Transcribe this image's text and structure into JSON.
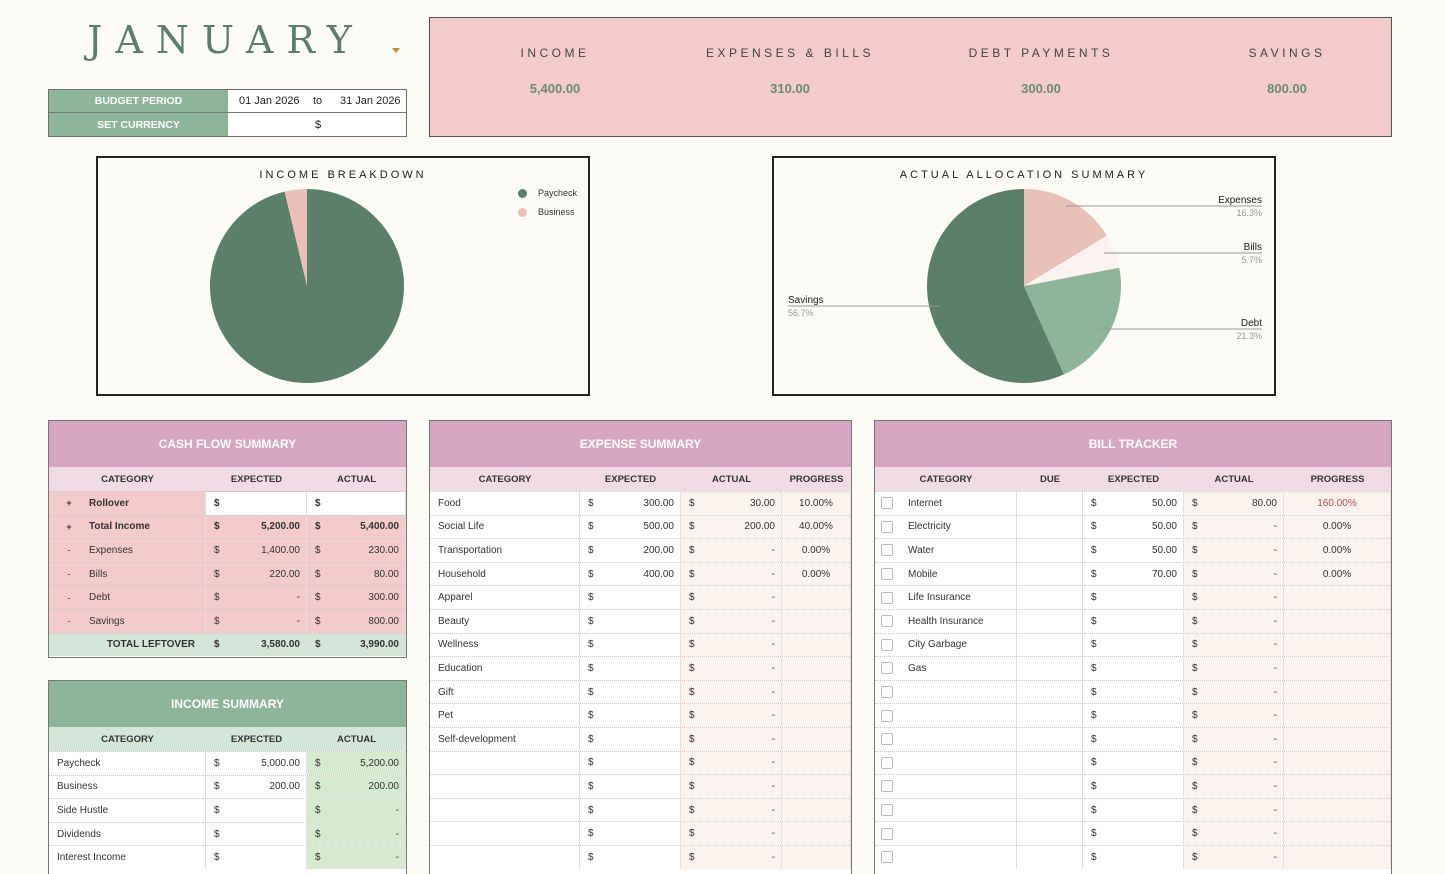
{
  "header": {
    "month": "JANUARY",
    "budget_period_label": "BUDGET PERIOD",
    "period_start": "01 Jan 2026",
    "period_to": "to",
    "period_end": "31 Jan 2026",
    "currency_label": "SET CURRENCY",
    "currency_symbol": "$"
  },
  "kpis": [
    {
      "label": "INCOME",
      "value": "5,400.00"
    },
    {
      "label": "EXPENSES & BILLS",
      "value": "310.00"
    },
    {
      "label": "DEBT PAYMENTS",
      "value": "300.00"
    },
    {
      "label": "SAVINGS",
      "value": "800.00"
    }
  ],
  "chart_data": [
    {
      "type": "pie",
      "title": "INCOME BREAKDOWN",
      "categories": [
        "Paycheck",
        "Business"
      ],
      "values": [
        5200,
        200
      ],
      "colors": [
        "#5b7f68",
        "#ebc0b8"
      ],
      "legend": "top-right"
    },
    {
      "type": "pie",
      "title": "ACTUAL ALLOCATION SUMMARY",
      "categories": [
        "Expenses",
        "Bills",
        "Debt",
        "Savings"
      ],
      "values": [
        230,
        80,
        300,
        800
      ],
      "percent_labels": [
        "16.3%",
        "5.7%",
        "21.3%",
        "56.7%"
      ],
      "colors": [
        "#e8c1b8",
        "#fcf2ef",
        "#8db59a",
        "#5b7f68"
      ]
    }
  ],
  "cashflow": {
    "title": "CASH FLOW SUMMARY",
    "headers": [
      "CATEGORY",
      "EXPECTED",
      "ACTUAL"
    ],
    "rows": [
      {
        "sign": "+",
        "category": "Rollover",
        "expected": "",
        "actual": "",
        "bold": true
      },
      {
        "sign": "+",
        "category": "Total Income",
        "expected": "5,200.00",
        "actual": "5,400.00",
        "bold": true
      },
      {
        "sign": "-",
        "category": "Expenses",
        "expected": "1,400.00",
        "actual": "230.00",
        "bold": false
      },
      {
        "sign": "-",
        "category": "Bills",
        "expected": "220.00",
        "actual": "80.00",
        "bold": false
      },
      {
        "sign": "-",
        "category": "Debt",
        "expected": "-",
        "actual": "300.00",
        "bold": false
      },
      {
        "sign": "-",
        "category": "Savings",
        "expected": "-",
        "actual": "800.00",
        "bold": false
      }
    ],
    "total": {
      "label": "TOTAL LEFTOVER",
      "expected": "3,580.00",
      "actual": "3,990.00"
    }
  },
  "income": {
    "title": "INCOME SUMMARY",
    "headers": [
      "CATEGORY",
      "EXPECTED",
      "ACTUAL"
    ],
    "rows": [
      {
        "category": "Paycheck",
        "expected": "5,000.00",
        "actual": "5,200.00"
      },
      {
        "category": "Business",
        "expected": "200.00",
        "actual": "200.00"
      },
      {
        "category": "Side Hustle",
        "expected": "",
        "actual": "-"
      },
      {
        "category": "Dividends",
        "expected": "",
        "actual": "-"
      },
      {
        "category": "Interest Income",
        "expected": "",
        "actual": "-"
      }
    ]
  },
  "expense": {
    "title": "EXPENSE SUMMARY",
    "headers": [
      "CATEGORY",
      "EXPECTED",
      "ACTUAL",
      "PROGRESS"
    ],
    "rows": [
      {
        "category": "Food",
        "expected": "300.00",
        "actual": "30.00",
        "progress": "10.00%"
      },
      {
        "category": "Social Life",
        "expected": "500.00",
        "actual": "200.00",
        "progress": "40.00%"
      },
      {
        "category": "Transportation",
        "expected": "200.00",
        "actual": "-",
        "progress": "0.00%"
      },
      {
        "category": "Household",
        "expected": "400.00",
        "actual": "-",
        "progress": "0.00%"
      },
      {
        "category": "Apparel",
        "expected": "",
        "actual": "-",
        "progress": ""
      },
      {
        "category": "Beauty",
        "expected": "",
        "actual": "-",
        "progress": ""
      },
      {
        "category": "Wellness",
        "expected": "",
        "actual": "-",
        "progress": ""
      },
      {
        "category": "Education",
        "expected": "",
        "actual": "-",
        "progress": ""
      },
      {
        "category": "Gift",
        "expected": "",
        "actual": "-",
        "progress": ""
      },
      {
        "category": "Pet",
        "expected": "",
        "actual": "-",
        "progress": ""
      },
      {
        "category": "Self-development",
        "expected": "",
        "actual": "-",
        "progress": ""
      },
      {
        "category": "",
        "expected": "",
        "actual": "-",
        "progress": ""
      },
      {
        "category": "",
        "expected": "",
        "actual": "-",
        "progress": ""
      },
      {
        "category": "",
        "expected": "",
        "actual": "-",
        "progress": ""
      },
      {
        "category": "",
        "expected": "",
        "actual": "-",
        "progress": ""
      },
      {
        "category": "",
        "expected": "",
        "actual": "-",
        "progress": ""
      }
    ]
  },
  "bills": {
    "title": "BILL TRACKER",
    "headers": [
      "CATEGORY",
      "DUE",
      "EXPECTED",
      "ACTUAL",
      "PROGRESS"
    ],
    "rows": [
      {
        "category": "Internet",
        "due": "",
        "expected": "50.00",
        "actual": "80.00",
        "progress": "160.00%",
        "over": true
      },
      {
        "category": "Electricity",
        "due": "",
        "expected": "50.00",
        "actual": "-",
        "progress": "0.00%",
        "over": false
      },
      {
        "category": "Water",
        "due": "",
        "expected": "50.00",
        "actual": "-",
        "progress": "0.00%",
        "over": false
      },
      {
        "category": "Mobile",
        "due": "",
        "expected": "70.00",
        "actual": "-",
        "progress": "0.00%",
        "over": false
      },
      {
        "category": "Life Insurance",
        "due": "",
        "expected": "",
        "actual": "-",
        "progress": "",
        "over": false
      },
      {
        "category": "Health Insurance",
        "due": "",
        "expected": "",
        "actual": "-",
        "progress": "",
        "over": false
      },
      {
        "category": "City Garbage",
        "due": "",
        "expected": "",
        "actual": "-",
        "progress": "",
        "over": false
      },
      {
        "category": "Gas",
        "due": "",
        "expected": "",
        "actual": "-",
        "progress": "",
        "over": false
      },
      {
        "category": "",
        "due": "",
        "expected": "",
        "actual": "-",
        "progress": "",
        "over": false
      },
      {
        "category": "",
        "due": "",
        "expected": "",
        "actual": "-",
        "progress": "",
        "over": false
      },
      {
        "category": "",
        "due": "",
        "expected": "",
        "actual": "-",
        "progress": "",
        "over": false
      },
      {
        "category": "",
        "due": "",
        "expected": "",
        "actual": "-",
        "progress": "",
        "over": false
      },
      {
        "category": "",
        "due": "",
        "expected": "",
        "actual": "-",
        "progress": "",
        "over": false
      },
      {
        "category": "",
        "due": "",
        "expected": "",
        "actual": "-",
        "progress": "",
        "over": false
      },
      {
        "category": "",
        "due": "",
        "expected": "",
        "actual": "-",
        "progress": "",
        "over": false
      },
      {
        "category": "",
        "due": "",
        "expected": "",
        "actual": "-",
        "progress": "",
        "over": false
      }
    ]
  },
  "colors": {
    "green_dark": "#5b7f68",
    "green_mid": "#8db59a",
    "pink_kpi": "#f3cbcb",
    "pink_header": "#d7a6c2",
    "over_budget": "#b54a4a"
  }
}
